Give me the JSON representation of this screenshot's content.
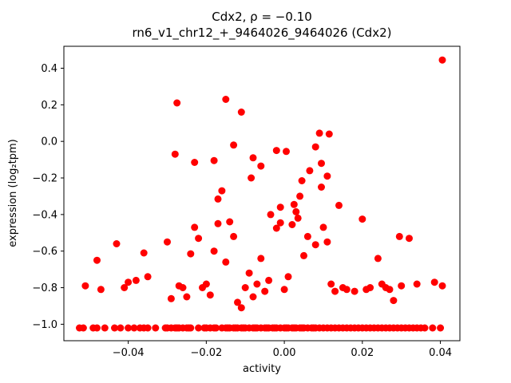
{
  "figure": {
    "background": "#ffffff"
  },
  "chart_data": {
    "type": "scatter",
    "title_line1": "Cdx2, ρ = −0.10",
    "title_line2": "rn6_v1_chr12_+_9464026_9464026 (Cdx2)",
    "xlabel": "activity",
    "ylabel": "expression (log₂tpm)",
    "legend": "none",
    "grid": false,
    "marker_color": "#ff0000",
    "marker_radius": 4.5,
    "xlim": [
      -0.0565,
      0.045
    ],
    "ylim": [
      -1.09,
      0.52
    ],
    "xticks": [
      -0.04,
      -0.02,
      0.0,
      0.02,
      0.04
    ],
    "xtick_labels": [
      "−0.04",
      "−0.02",
      "0.00",
      "0.02",
      "0.04"
    ],
    "yticks": [
      0.4,
      0.2,
      0.0,
      -0.2,
      -0.4,
      -0.6,
      -0.8,
      -1.0
    ],
    "ytick_labels": [
      "0.4",
      "0.2",
      "0.0",
      "−0.2",
      "−0.4",
      "−0.6",
      "−0.8",
      "−1.0"
    ],
    "points": [
      [
        0.0405,
        0.445
      ],
      [
        -0.0275,
        0.21
      ],
      [
        -0.015,
        0.23
      ],
      [
        -0.011,
        0.16
      ],
      [
        0.009,
        0.045
      ],
      [
        0.0115,
        0.04
      ],
      [
        -0.013,
        -0.02
      ],
      [
        0.008,
        -0.03
      ],
      [
        -0.002,
        -0.05
      ],
      [
        0.0005,
        -0.055
      ],
      [
        -0.028,
        -0.07
      ],
      [
        -0.008,
        -0.09
      ],
      [
        -0.018,
        -0.105
      ],
      [
        -0.023,
        -0.115
      ],
      [
        0.0095,
        -0.12
      ],
      [
        -0.006,
        -0.135
      ],
      [
        0.0065,
        -0.16
      ],
      [
        0.011,
        -0.19
      ],
      [
        -0.0085,
        -0.2
      ],
      [
        0.0045,
        -0.215
      ],
      [
        0.0095,
        -0.25
      ],
      [
        -0.016,
        -0.27
      ],
      [
        0.004,
        -0.3
      ],
      [
        -0.017,
        -0.315
      ],
      [
        0.0025,
        -0.345
      ],
      [
        0.014,
        -0.35
      ],
      [
        -0.001,
        -0.36
      ],
      [
        0.003,
        -0.385
      ],
      [
        -0.0035,
        -0.4
      ],
      [
        0.0035,
        -0.42
      ],
      [
        0.02,
        -0.425
      ],
      [
        -0.023,
        -0.47
      ],
      [
        -0.017,
        -0.45
      ],
      [
        -0.014,
        -0.44
      ],
      [
        -0.001,
        -0.445
      ],
      [
        0.002,
        -0.455
      ],
      [
        0.01,
        -0.47
      ],
      [
        -0.002,
        -0.475
      ],
      [
        -0.022,
        -0.53
      ],
      [
        -0.013,
        -0.52
      ],
      [
        0.006,
        -0.52
      ],
      [
        0.0295,
        -0.52
      ],
      [
        0.032,
        -0.53
      ],
      [
        -0.03,
        -0.55
      ],
      [
        -0.043,
        -0.56
      ],
      [
        0.008,
        -0.565
      ],
      [
        0.011,
        -0.55
      ],
      [
        -0.024,
        -0.615
      ],
      [
        -0.036,
        -0.61
      ],
      [
        -0.018,
        -0.6
      ],
      [
        0.005,
        -0.625
      ],
      [
        0.024,
        -0.64
      ],
      [
        -0.006,
        -0.64
      ],
      [
        -0.048,
        -0.65
      ],
      [
        -0.015,
        -0.66
      ],
      [
        -0.009,
        -0.72
      ],
      [
        0.001,
        -0.74
      ],
      [
        -0.035,
        -0.74
      ],
      [
        -0.038,
        -0.76
      ],
      [
        -0.04,
        -0.77
      ],
      [
        0.012,
        -0.78
      ],
      [
        0.025,
        -0.78
      ],
      [
        0.034,
        -0.78
      ],
      [
        -0.004,
        -0.76
      ],
      [
        -0.007,
        -0.78
      ],
      [
        -0.02,
        -0.78
      ],
      [
        -0.027,
        -0.79
      ],
      [
        -0.051,
        -0.79
      ],
      [
        0.03,
        -0.79
      ],
      [
        0.0385,
        -0.77
      ],
      [
        0.0405,
        -0.79
      ],
      [
        -0.041,
        -0.8
      ],
      [
        -0.026,
        -0.8
      ],
      [
        -0.01,
        -0.8
      ],
      [
        0.015,
        -0.8
      ],
      [
        0.022,
        -0.8
      ],
      [
        0.026,
        -0.8
      ],
      [
        -0.047,
        -0.81
      ],
      [
        -0.021,
        -0.8
      ],
      [
        0.0,
        -0.81
      ],
      [
        0.016,
        -0.81
      ],
      [
        0.021,
        -0.81
      ],
      [
        0.027,
        -0.81
      ],
      [
        -0.005,
        -0.82
      ],
      [
        0.013,
        -0.82
      ],
      [
        0.018,
        -0.82
      ],
      [
        -0.019,
        -0.84
      ],
      [
        -0.025,
        -0.85
      ],
      [
        -0.008,
        -0.85
      ],
      [
        -0.029,
        -0.86
      ],
      [
        0.028,
        -0.87
      ],
      [
        -0.012,
        -0.88
      ],
      [
        -0.011,
        -0.91
      ],
      [
        -0.0525,
        -1.02
      ],
      [
        -0.0515,
        -1.02
      ],
      [
        -0.049,
        -1.02
      ],
      [
        -0.048,
        -1.02
      ],
      [
        -0.046,
        -1.02
      ],
      [
        -0.0435,
        -1.02
      ],
      [
        -0.042,
        -1.02
      ],
      [
        -0.04,
        -1.02
      ],
      [
        -0.0385,
        -1.02
      ],
      [
        -0.037,
        -1.02
      ],
      [
        -0.036,
        -1.02
      ],
      [
        -0.035,
        -1.02
      ],
      [
        -0.033,
        -1.02
      ],
      [
        -0.0305,
        -1.02
      ],
      [
        -0.03,
        -1.02
      ],
      [
        -0.029,
        -1.02
      ],
      [
        -0.028,
        -1.02
      ],
      [
        -0.0275,
        -1.02
      ],
      [
        -0.027,
        -1.02
      ],
      [
        -0.026,
        -1.02
      ],
      [
        -0.025,
        -1.02
      ],
      [
        -0.0245,
        -1.02
      ],
      [
        -0.024,
        -1.02
      ],
      [
        -0.022,
        -1.02
      ],
      [
        -0.0205,
        -1.02
      ],
      [
        -0.02,
        -1.02
      ],
      [
        -0.019,
        -1.02
      ],
      [
        -0.018,
        -1.02
      ],
      [
        -0.0175,
        -1.02
      ],
      [
        -0.016,
        -1.02
      ],
      [
        -0.015,
        -1.02
      ],
      [
        -0.0145,
        -1.02
      ],
      [
        -0.014,
        -1.02
      ],
      [
        -0.013,
        -1.02
      ],
      [
        -0.0125,
        -1.02
      ],
      [
        -0.012,
        -1.02
      ],
      [
        -0.011,
        -1.02
      ],
      [
        -0.0105,
        -1.02
      ],
      [
        -0.01,
        -1.02
      ],
      [
        -0.009,
        -1.02
      ],
      [
        -0.008,
        -1.02
      ],
      [
        -0.0075,
        -1.02
      ],
      [
        -0.007,
        -1.02
      ],
      [
        -0.006,
        -1.02
      ],
      [
        -0.005,
        -1.02
      ],
      [
        -0.0045,
        -1.02
      ],
      [
        -0.004,
        -1.02
      ],
      [
        -0.003,
        -1.02
      ],
      [
        -0.0025,
        -1.02
      ],
      [
        -0.002,
        -1.02
      ],
      [
        -0.001,
        -1.02
      ],
      [
        0.0,
        -1.02
      ],
      [
        0.0005,
        -1.02
      ],
      [
        0.001,
        -1.02
      ],
      [
        0.002,
        -1.02
      ],
      [
        0.0025,
        -1.02
      ],
      [
        0.003,
        -1.02
      ],
      [
        0.004,
        -1.02
      ],
      [
        0.0045,
        -1.02
      ],
      [
        0.005,
        -1.02
      ],
      [
        0.006,
        -1.02
      ],
      [
        0.007,
        -1.02
      ],
      [
        0.0075,
        -1.02
      ],
      [
        0.008,
        -1.02
      ],
      [
        0.009,
        -1.02
      ],
      [
        0.01,
        -1.02
      ],
      [
        0.011,
        -1.02
      ],
      [
        0.012,
        -1.02
      ],
      [
        0.013,
        -1.02
      ],
      [
        0.014,
        -1.02
      ],
      [
        0.015,
        -1.02
      ],
      [
        0.016,
        -1.02
      ],
      [
        0.017,
        -1.02
      ],
      [
        0.018,
        -1.02
      ],
      [
        0.019,
        -1.02
      ],
      [
        0.02,
        -1.02
      ],
      [
        0.021,
        -1.02
      ],
      [
        0.022,
        -1.02
      ],
      [
        0.023,
        -1.02
      ],
      [
        0.024,
        -1.02
      ],
      [
        0.025,
        -1.02
      ],
      [
        0.026,
        -1.02
      ],
      [
        0.027,
        -1.02
      ],
      [
        0.028,
        -1.02
      ],
      [
        0.029,
        -1.02
      ],
      [
        0.03,
        -1.02
      ],
      [
        0.031,
        -1.02
      ],
      [
        0.032,
        -1.02
      ],
      [
        0.033,
        -1.02
      ],
      [
        0.034,
        -1.02
      ],
      [
        0.035,
        -1.02
      ],
      [
        0.036,
        -1.02
      ],
      [
        0.038,
        -1.02
      ],
      [
        0.04,
        -1.02
      ]
    ]
  }
}
